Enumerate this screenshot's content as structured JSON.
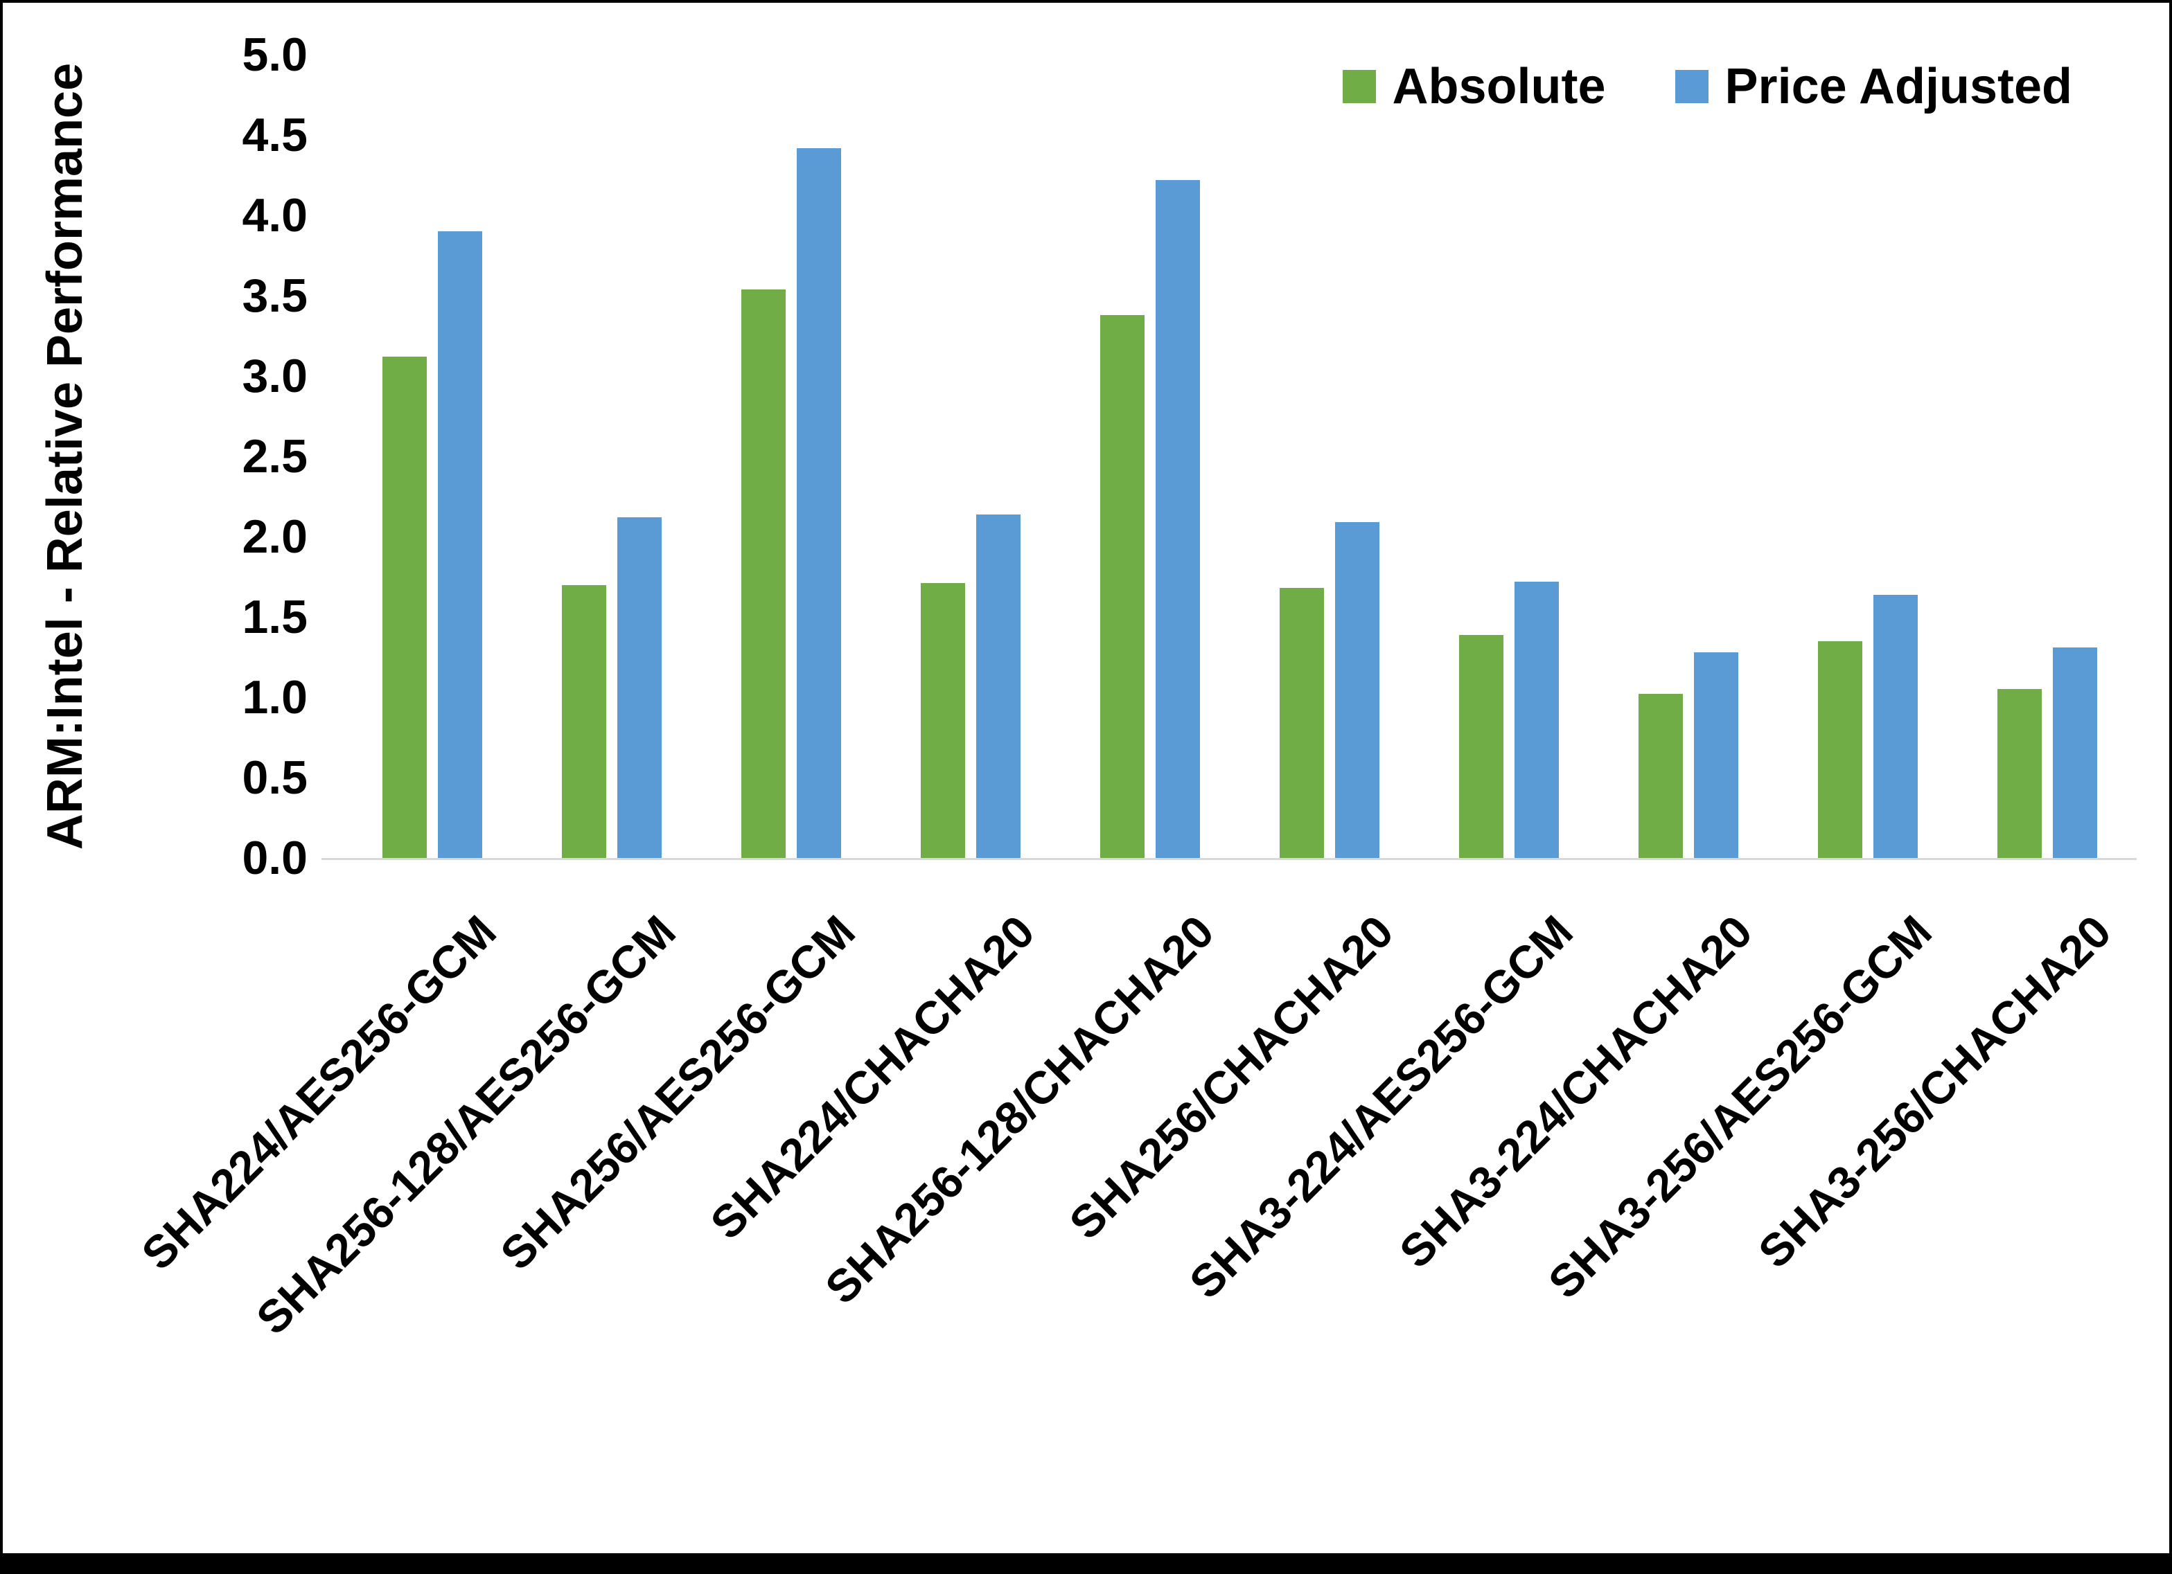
{
  "figure": {
    "background_color": "#FFFFFF",
    "border_color": "#000000"
  },
  "chart_data": {
    "type": "bar",
    "title": "",
    "xlabel": "",
    "ylabel": "ARM:Intel - Relative Performance",
    "ylim": [
      0,
      5
    ],
    "ytick_labels": [
      "0.0",
      "0.5",
      "1.0",
      "1.5",
      "2.0",
      "2.5",
      "3.0",
      "3.5",
      "4.0",
      "4.5",
      "5.0"
    ],
    "grid": false,
    "legend_position": "top-right",
    "categories": [
      "SHA224/AES256-GCM",
      "SHA256-128/AES256-GCM",
      "SHA256/AES256-GCM",
      "SHA224/CHACHA20",
      "SHA256-128/CHACHA20",
      "SHA256/CHACHA20",
      "SHA3-224/AES256-GCM",
      "SHA3-224/CHACHA20",
      "SHA3-256/AES256-GCM",
      "SHA3-256/CHACHA20"
    ],
    "series": [
      {
        "name": "Absolute",
        "color": "#70AD47",
        "values": [
          3.12,
          1.7,
          3.54,
          1.71,
          3.38,
          1.68,
          1.39,
          1.02,
          1.35,
          1.05
        ]
      },
      {
        "name": "Price Adjusted",
        "color": "#5B9BD5",
        "values": [
          3.9,
          2.12,
          4.42,
          2.14,
          4.22,
          2.09,
          1.72,
          1.28,
          1.64,
          1.31
        ]
      }
    ]
  }
}
